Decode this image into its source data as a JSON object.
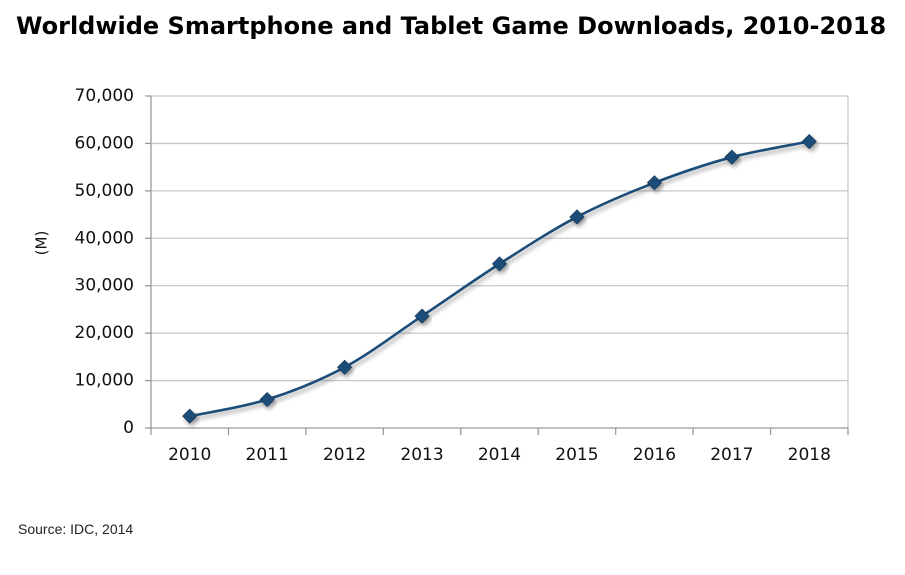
{
  "chart_data": {
    "type": "line",
    "title": "Worldwide Smartphone and Tablet Game Downloads, 2010-2018",
    "ylabel": "(M)",
    "xlabel": "",
    "categories": [
      "2010",
      "2011",
      "2012",
      "2013",
      "2014",
      "2015",
      "2016",
      "2017",
      "2018"
    ],
    "series": [
      {
        "values": [
          2500,
          6000,
          12800,
          23600,
          34600,
          44500,
          51700,
          57100,
          60400
        ]
      }
    ],
    "ylim": [
      0,
      70000
    ],
    "yticks": [
      "0",
      "10,000",
      "20,000",
      "30,000",
      "40,000",
      "50,000",
      "60,000",
      "70,000"
    ],
    "grid": true,
    "legend": "none",
    "line_color": "#1f4e79",
    "marker_color": "#1f4e79",
    "marker": "diamond",
    "source": "Source: IDC, 2014"
  }
}
